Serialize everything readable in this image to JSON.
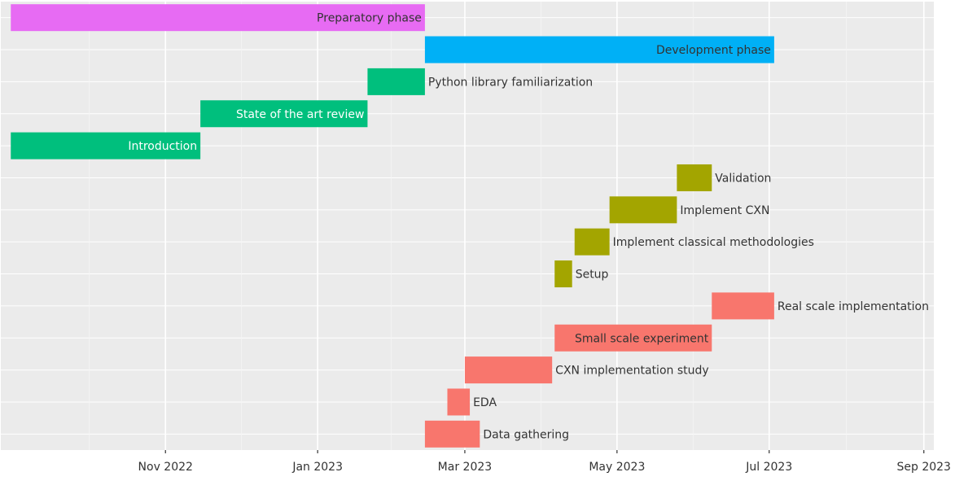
{
  "chart_data": {
    "type": "gantt",
    "xlabel": "",
    "ylabel": "",
    "grid": true,
    "x_ticks": [
      "Nov 2022",
      "Jan 2023",
      "Mar 2023",
      "May 2023",
      "Jul 2023",
      "Sep 2023"
    ],
    "xlim": [
      "2022-08-27",
      "2023-09-05"
    ],
    "tasks": [
      {
        "label": "Preparatory phase",
        "start": "2022-08-31",
        "end": "2023-02-13",
        "color": "#E76BF3",
        "label_position": "inside"
      },
      {
        "label": "Development phase",
        "start": "2023-02-13",
        "end": "2023-07-03",
        "color": "#00B0F6",
        "label_position": "inside"
      },
      {
        "label": "Python library familiarization",
        "start": "2023-01-21",
        "end": "2023-02-13",
        "color": "#00BF7D",
        "label_position": "outside"
      },
      {
        "label": "State of the art review",
        "start": "2022-11-15",
        "end": "2023-01-21",
        "color": "#00BF7D",
        "label_position": "inside"
      },
      {
        "label": "Introduction",
        "start": "2022-08-31",
        "end": "2022-11-15",
        "color": "#00BF7D",
        "label_position": "inside"
      },
      {
        "label": "Validation",
        "start": "2023-05-25",
        "end": "2023-06-08",
        "color": "#A3A500",
        "label_position": "outside"
      },
      {
        "label": "Implement CXN",
        "start": "2023-04-28",
        "end": "2023-05-25",
        "color": "#A3A500",
        "label_position": "outside"
      },
      {
        "label": "Implement classical methodologies",
        "start": "2023-04-14",
        "end": "2023-04-28",
        "color": "#A3A500",
        "label_position": "outside"
      },
      {
        "label": "Setup",
        "start": "2023-04-06",
        "end": "2023-04-13",
        "color": "#A3A500",
        "label_position": "outside"
      },
      {
        "label": "Real scale implementation",
        "start": "2023-06-08",
        "end": "2023-07-03",
        "color": "#F8766D",
        "label_position": "outside"
      },
      {
        "label": "Small scale experiment",
        "start": "2023-04-06",
        "end": "2023-06-08",
        "color": "#F8766D",
        "label_position": "inside"
      },
      {
        "label": "CXN implementation study",
        "start": "2023-03-01",
        "end": "2023-04-05",
        "color": "#F8766D",
        "label_position": "outside"
      },
      {
        "label": "EDA",
        "start": "2023-02-22",
        "end": "2023-03-03",
        "color": "#F8766D",
        "label_position": "outside"
      },
      {
        "label": "Data gathering",
        "start": "2023-02-13",
        "end": "2023-03-07",
        "color": "#F8766D",
        "label_position": "outside"
      }
    ]
  }
}
